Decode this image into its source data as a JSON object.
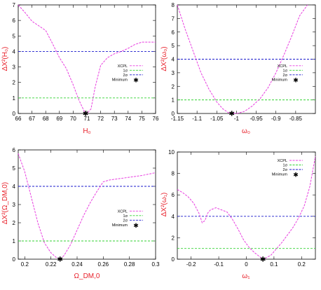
{
  "colors": {
    "xcpl": "#e83fe0",
    "one_sigma": "#33d233",
    "two_sigma": "#1a1acc",
    "axis_label": "#e8202a",
    "minimum": "#000000"
  },
  "legend_labels": {
    "xcpl": "XCPL",
    "one_sigma": "1σ",
    "two_sigma": "2σ",
    "minimum": "Minimum"
  },
  "chart_data": [
    {
      "type": "line",
      "id": "H0",
      "ylabel": "ΔX²(H₀)",
      "xlabel": "H₀",
      "xlim": [
        66,
        76
      ],
      "ylim": [
        0,
        7
      ],
      "xticks": [
        66,
        67,
        68,
        69,
        70,
        71,
        72,
        73,
        74,
        75,
        76
      ],
      "yticks": [
        0,
        1,
        2,
        3,
        4,
        5,
        6,
        7
      ],
      "xtick_labels": [
        "66",
        "67",
        "68",
        "69",
        "70",
        "71",
        "72",
        "73",
        "74",
        "75",
        "76"
      ],
      "ytick_labels": [
        "0",
        "1",
        "2",
        "3",
        "4",
        "5",
        "6",
        "7"
      ],
      "legend": "middle-right",
      "sigma_levels": [
        1,
        4
      ],
      "minimum": {
        "x": 70.9,
        "y": 0
      },
      "series": [
        {
          "x": [
            66,
            66.5,
            67,
            67.5,
            68,
            68.5,
            69,
            69.5,
            70,
            70.4,
            70.8,
            71.0,
            71.3,
            71.6,
            72,
            72.5,
            73,
            73.5,
            74,
            74.5,
            75,
            75.5,
            76
          ],
          "y": [
            7.0,
            6.5,
            5.95,
            5.65,
            5.35,
            4.5,
            3.6,
            2.9,
            1.85,
            0.9,
            0.15,
            0.0,
            0.3,
            1.7,
            3.1,
            3.6,
            3.85,
            4.0,
            4.2,
            4.45,
            4.6,
            4.6,
            4.6
          ]
        }
      ]
    },
    {
      "type": "line",
      "id": "w0",
      "ylabel": "ΔX²(ω₀)",
      "xlabel": "ω₀",
      "xlim": [
        -1.15,
        -0.8
      ],
      "ylim": [
        0,
        8
      ],
      "xticks": [
        -1.15,
        -1.1,
        -1.05,
        -1.0,
        -0.95,
        -0.9,
        -0.85
      ],
      "yticks": [
        0,
        1,
        2,
        3,
        4,
        5,
        6,
        7,
        8
      ],
      "xtick_labels": [
        "-1.15",
        "-1.1",
        "-1.05",
        "-1",
        "-0.95",
        "-0.9",
        "-0.85"
      ],
      "ytick_labels": [
        "0",
        "1",
        "2",
        "3",
        "4",
        "5",
        "6",
        "7",
        "8"
      ],
      "legend": "middle-right",
      "sigma_levels": [
        1,
        4
      ],
      "minimum": {
        "x": -1.012,
        "y": 0
      },
      "series": [
        {
          "x": [
            -1.15,
            -1.13,
            -1.11,
            -1.09,
            -1.07,
            -1.05,
            -1.035,
            -1.02,
            -1.0,
            -0.98,
            -0.96,
            -0.94,
            -0.92,
            -0.9,
            -0.88,
            -0.86,
            -0.84,
            -0.82
          ],
          "y": [
            8.0,
            6.2,
            4.6,
            3.0,
            1.8,
            0.85,
            0.35,
            0.05,
            0.0,
            0.15,
            0.55,
            1.1,
            1.9,
            3.0,
            4.3,
            5.7,
            7.2,
            8.0
          ]
        }
      ]
    },
    {
      "type": "line",
      "id": "OmegaDM",
      "ylabel": "ΔX²(Ω_DM,0)",
      "xlabel": "Ω_DM,0",
      "xlim": [
        0.195,
        0.3
      ],
      "ylim": [
        0,
        6
      ],
      "xticks": [
        0.2,
        0.22,
        0.24,
        0.26,
        0.28,
        0.3
      ],
      "yticks": [
        0,
        1,
        2,
        3,
        4,
        5,
        6
      ],
      "xtick_labels": [
        "0.2",
        "0.22",
        "0.24",
        "0.26",
        "0.28",
        "0.3"
      ],
      "ytick_labels": [
        "0",
        "1",
        "2",
        "3",
        "4",
        "5",
        "6"
      ],
      "legend": "middle-right",
      "sigma_levels": [
        1,
        4
      ],
      "minimum": {
        "x": 0.227,
        "y": 0
      },
      "series": [
        {
          "x": [
            0.195,
            0.2,
            0.205,
            0.21,
            0.215,
            0.22,
            0.224,
            0.227,
            0.23,
            0.235,
            0.24,
            0.245,
            0.25,
            0.255,
            0.26,
            0.265,
            0.27,
            0.28,
            0.29,
            0.3
          ],
          "y": [
            5.8,
            4.8,
            3.4,
            2.0,
            0.9,
            0.35,
            0.1,
            0.0,
            0.2,
            0.8,
            1.6,
            2.4,
            3.1,
            3.7,
            4.25,
            4.35,
            4.4,
            4.5,
            4.6,
            4.75
          ]
        }
      ]
    },
    {
      "type": "line",
      "id": "w1",
      "ylabel": "ΔX²(ω₁)",
      "xlabel": "ω₁",
      "xlim": [
        -0.25,
        0.25
      ],
      "ylim": [
        0,
        10
      ],
      "xticks": [
        -0.2,
        -0.1,
        0,
        0.1,
        0.2
      ],
      "yticks": [
        0,
        2,
        4,
        6,
        8,
        10
      ],
      "xtick_labels": [
        "-0.2",
        "-0.1",
        "0",
        "0.1",
        "0.2"
      ],
      "ytick_labels": [
        "0",
        "2",
        "4",
        "6",
        "8",
        "10"
      ],
      "legend": "top-right",
      "sigma_levels": [
        1,
        4
      ],
      "minimum": {
        "x": 0.06,
        "y": 0
      },
      "series": [
        {
          "x": [
            -0.25,
            -0.23,
            -0.21,
            -0.19,
            -0.17,
            -0.16,
            -0.15,
            -0.14,
            -0.13,
            -0.11,
            -0.09,
            -0.07,
            -0.05,
            -0.03,
            -0.01,
            0.01,
            0.03,
            0.05,
            0.06,
            0.07,
            0.09,
            0.11,
            0.13,
            0.15,
            0.17,
            0.19,
            0.21,
            0.23,
            0.25
          ],
          "y": [
            6.5,
            6.2,
            5.8,
            5.2,
            4.2,
            3.4,
            3.6,
            4.3,
            4.6,
            4.8,
            4.6,
            4.4,
            3.7,
            2.8,
            1.8,
            1.1,
            0.6,
            0.2,
            0.0,
            0.1,
            0.4,
            1.0,
            1.6,
            2.3,
            3.0,
            3.9,
            5.0,
            6.8,
            9.6
          ]
        }
      ]
    }
  ]
}
